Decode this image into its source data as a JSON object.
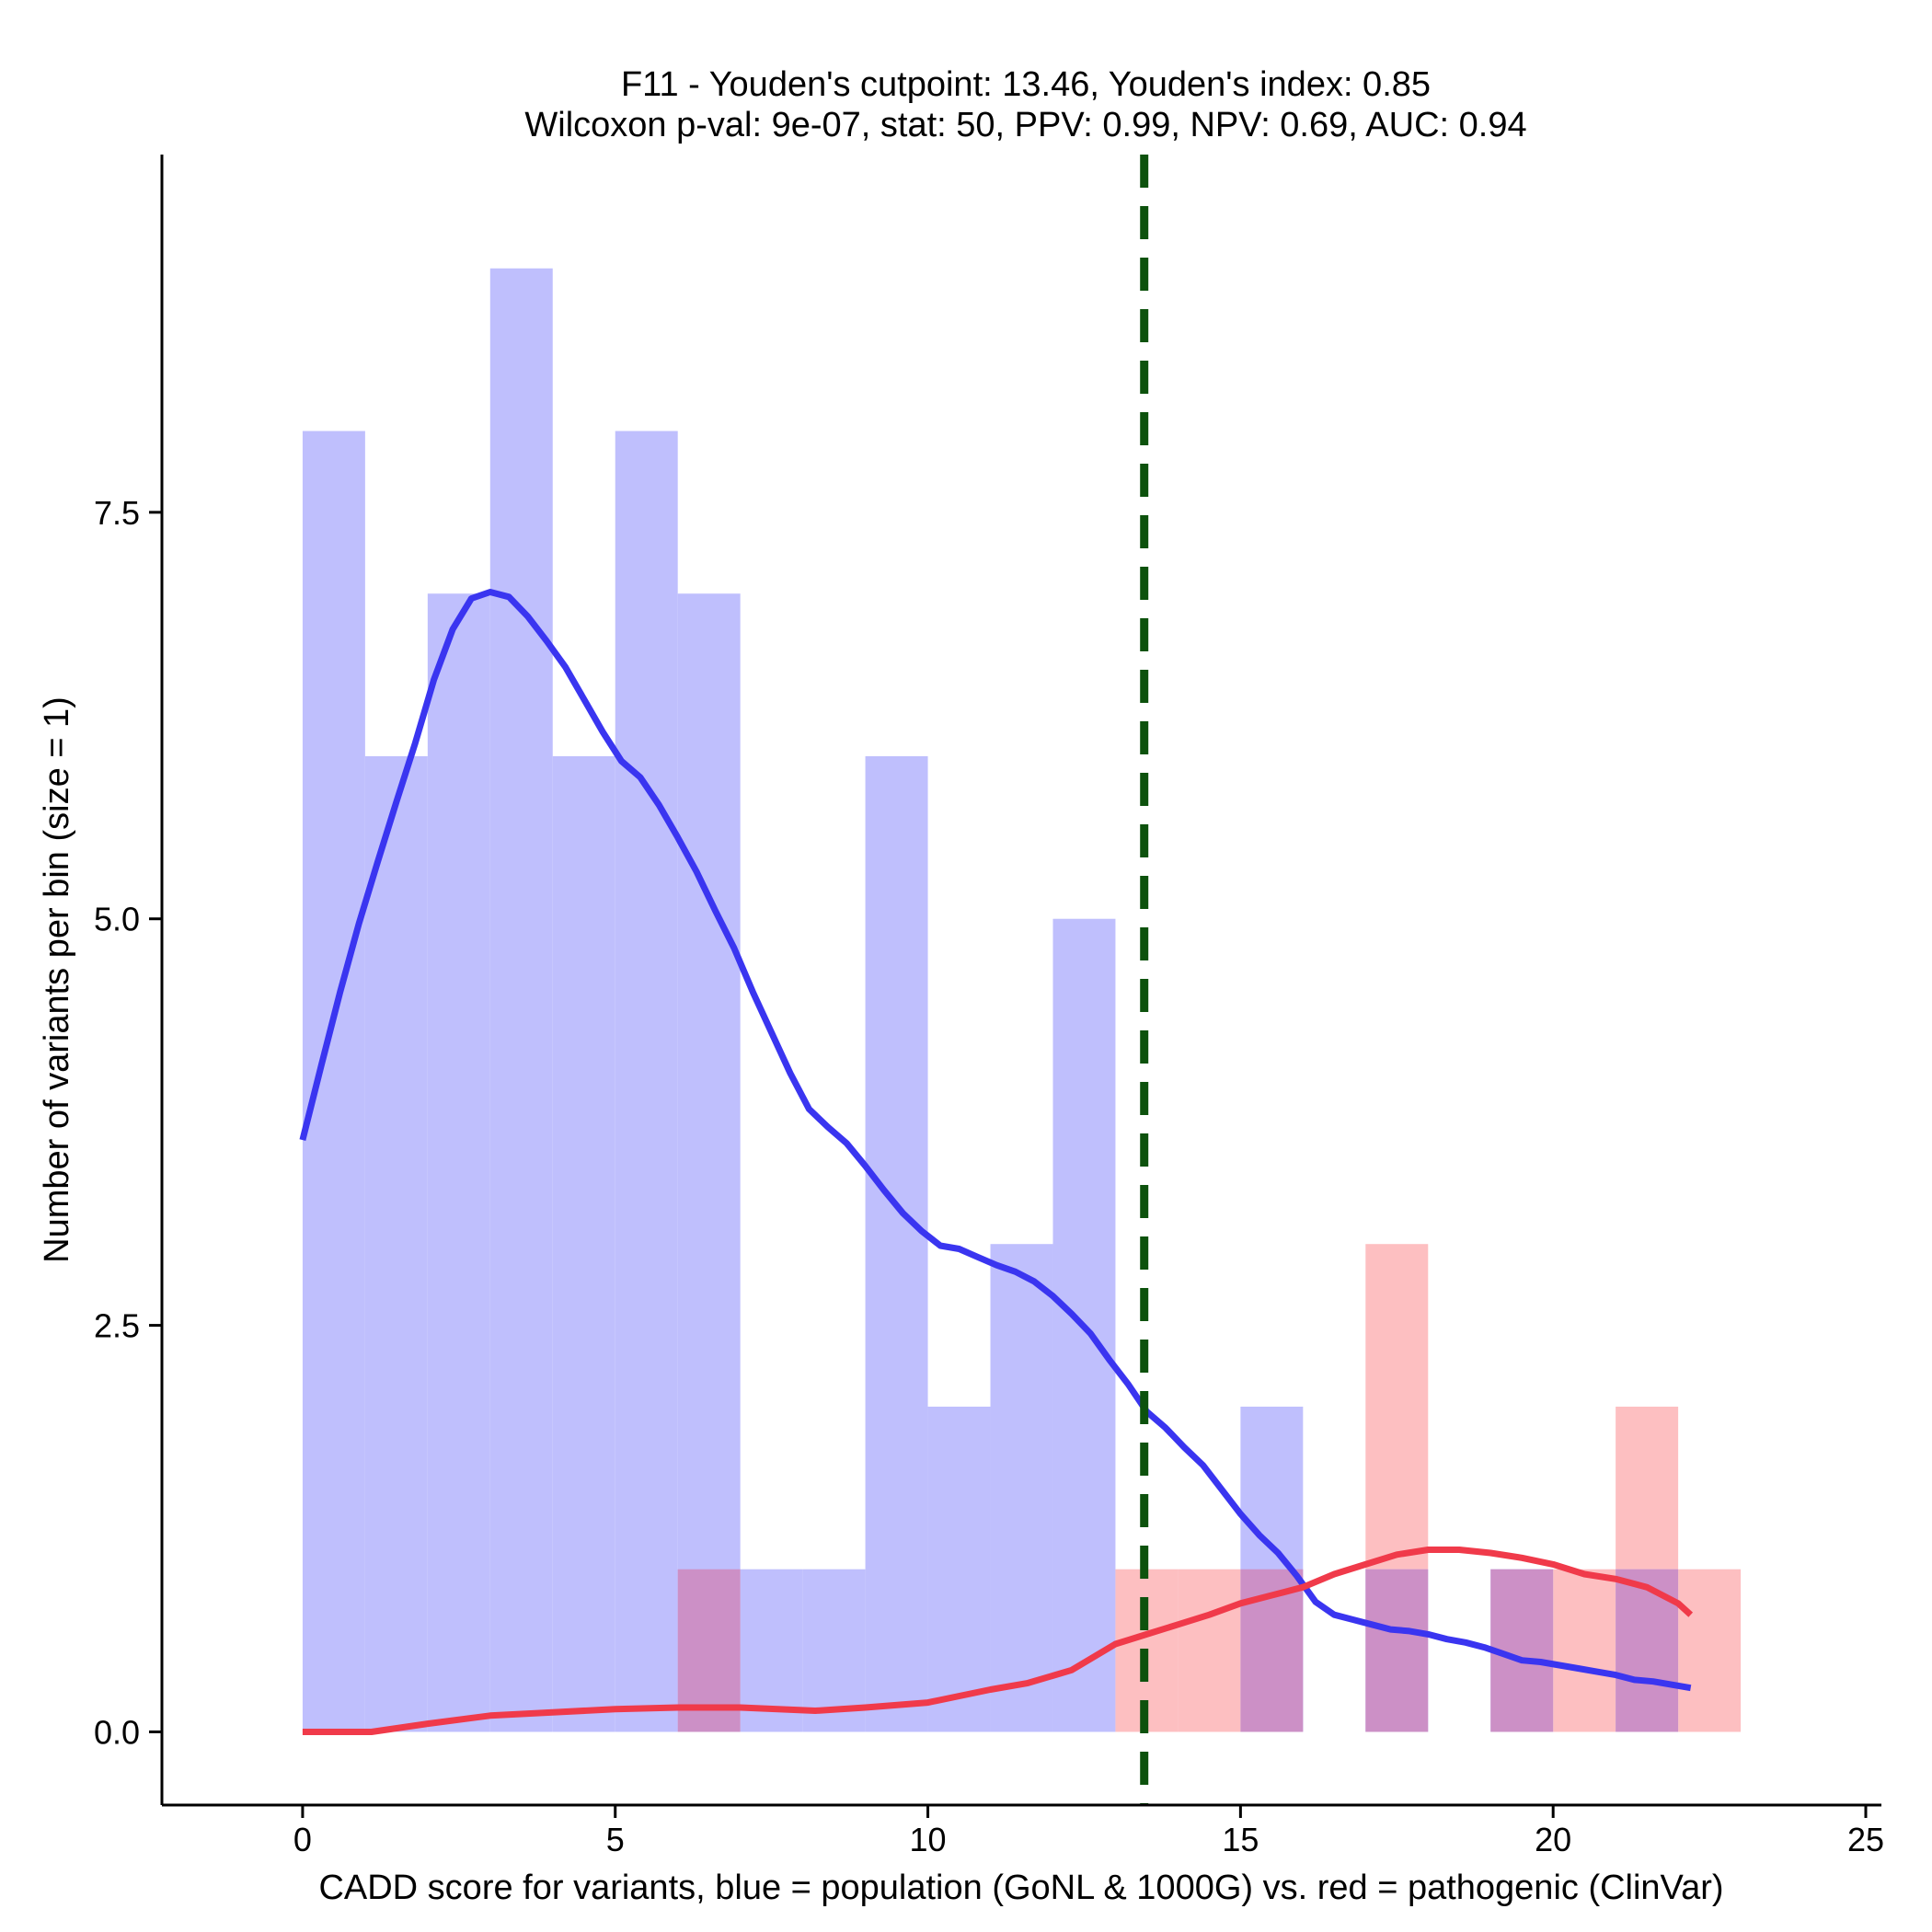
{
  "chart_data": {
    "type": "bar",
    "title_line1": "F11 - Youden's cutpoint: 13.46, Youden's index: 0.85",
    "title_line2": "Wilcoxon p-val: 9e-07, stat: 50, PPV: 0.99, NPV: 0.69, AUC: 0.94",
    "xlabel": "CADD score for variants, blue = population (GoNL & 1000G) vs. red = pathogenic (ClinVar)",
    "ylabel": "Number of variants per bin (size = 1)",
    "xlim": [
      -2.25,
      25.25
    ],
    "ylim": [
      -0.45,
      9.7
    ],
    "x_ticks": [
      0,
      5,
      10,
      15,
      20,
      25
    ],
    "x_tick_labels": [
      "0",
      "5",
      "10",
      "15",
      "20",
      "25"
    ],
    "y_ticks": [
      0,
      2.5,
      5,
      7.5
    ],
    "y_tick_labels": [
      "0.0",
      "2.5",
      "5.0",
      "7.5"
    ],
    "bin_size": 1,
    "cutpoint": 13.46,
    "colors": {
      "population_bar": "#bfbffd",
      "pathogenic_bar": "#fdbfc1",
      "overlap_bar": "#cc90c6",
      "population_line": "#3a35f0",
      "pathogenic_line": "#f03a4a",
      "cutpoint_line": "#0d520d"
    },
    "series": [
      {
        "name": "population (GoNL & 1000G)",
        "bin_starts": [
          0,
          1,
          2,
          3,
          4,
          5,
          6,
          7,
          8,
          9,
          10,
          11,
          12,
          15,
          17,
          19,
          21
        ],
        "values": [
          8,
          6,
          7,
          9,
          6,
          8,
          7,
          1,
          1,
          6,
          2,
          3,
          5,
          2,
          1,
          1,
          1
        ]
      },
      {
        "name": "pathogenic (ClinVar)",
        "bin_starts": [
          6,
          13,
          14,
          15,
          17,
          19,
          20,
          21,
          22
        ],
        "values": [
          1,
          1,
          1,
          1,
          3,
          1,
          1,
          2,
          1
        ]
      }
    ],
    "density_curves": [
      {
        "name": "population density",
        "x": [
          0,
          0.3,
          0.6,
          0.9,
          1.2,
          1.5,
          1.8,
          2.1,
          2.4,
          2.7,
          3.0,
          3.3,
          3.6,
          3.9,
          4.2,
          4.5,
          4.8,
          5.1,
          5.4,
          5.7,
          6.0,
          6.3,
          6.6,
          6.9,
          7.2,
          7.5,
          7.8,
          8.1,
          8.4,
          8.7,
          9.0,
          9.3,
          9.6,
          9.9,
          10.2,
          10.5,
          10.8,
          11.1,
          11.4,
          11.7,
          12.0,
          12.3,
          12.6,
          12.9,
          13.2,
          13.5,
          13.8,
          14.1,
          14.4,
          14.7,
          15.0,
          15.3,
          15.6,
          15.9,
          16.2,
          16.5,
          16.8,
          17.1,
          17.4,
          17.7,
          18.0,
          18.3,
          18.6,
          18.9,
          19.2,
          19.5,
          19.8,
          20.1,
          20.4,
          20.7,
          21.0,
          21.3,
          21.6,
          21.9,
          22.2
        ],
        "y": [
          3.64,
          4.1,
          4.55,
          4.97,
          5.35,
          5.72,
          6.08,
          6.47,
          6.78,
          6.97,
          7.01,
          6.98,
          6.86,
          6.71,
          6.55,
          6.35,
          6.15,
          5.97,
          5.87,
          5.7,
          5.5,
          5.29,
          5.05,
          4.82,
          4.55,
          4.3,
          4.05,
          3.83,
          3.72,
          3.62,
          3.48,
          3.33,
          3.19,
          3.08,
          2.99,
          2.97,
          2.92,
          2.87,
          2.83,
          2.77,
          2.68,
          2.57,
          2.45,
          2.29,
          2.14,
          1.97,
          1.87,
          1.75,
          1.64,
          1.49,
          1.34,
          1.21,
          1.1,
          0.96,
          0.8,
          0.72,
          0.69,
          0.66,
          0.63,
          0.62,
          0.6,
          0.57,
          0.55,
          0.52,
          0.48,
          0.44,
          0.43,
          0.41,
          0.39,
          0.37,
          0.35,
          0.32,
          0.31,
          0.29,
          0.27
        ]
      },
      {
        "name": "pathogenic density",
        "x": [
          0,
          1.1,
          2.0,
          3.0,
          4.0,
          5.0,
          6.0,
          7.0,
          8.2,
          9.0,
          10.0,
          11.0,
          11.6,
          12.3,
          13.0,
          13.5,
          14.0,
          14.5,
          15.0,
          15.5,
          16.0,
          16.5,
          17.0,
          17.5,
          18.0,
          18.5,
          19.0,
          19.5,
          20.0,
          20.5,
          21.0,
          21.5,
          22.0,
          22.2
        ],
        "y": [
          0.0,
          0.0,
          0.05,
          0.1,
          0.12,
          0.14,
          0.15,
          0.15,
          0.13,
          0.15,
          0.18,
          0.26,
          0.3,
          0.38,
          0.54,
          0.6,
          0.66,
          0.72,
          0.79,
          0.84,
          0.89,
          0.97,
          1.03,
          1.09,
          1.12,
          1.12,
          1.1,
          1.07,
          1.03,
          0.97,
          0.94,
          0.89,
          0.79,
          0.72
        ]
      }
    ]
  }
}
